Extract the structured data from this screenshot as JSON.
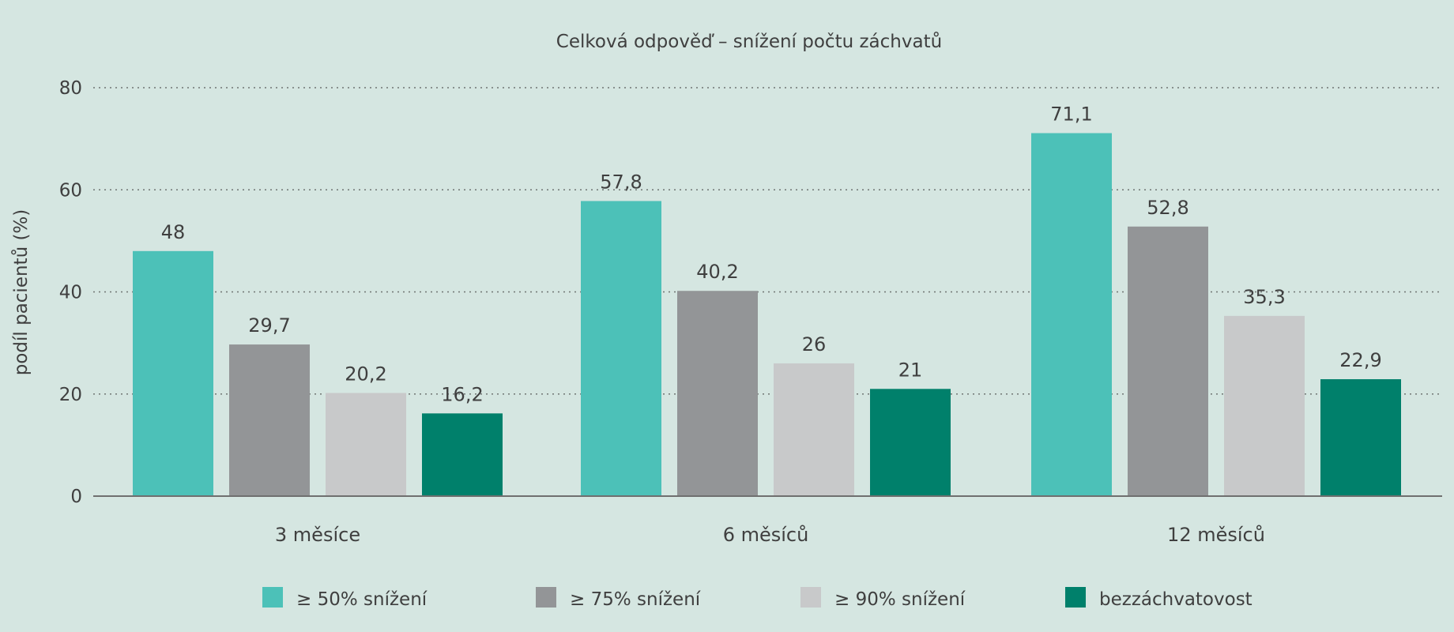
{
  "chart_data": {
    "type": "bar",
    "title": "Celková odpověď – snížení počtu záchvatů",
    "xlabel": "",
    "ylabel": "podíl pacientů (%)",
    "ylim": [
      0,
      80
    ],
    "yticks": [
      0,
      20,
      40,
      60,
      80
    ],
    "grid": true,
    "legend_position": "bottom",
    "categories": [
      "3 měsíce",
      "6 měsíců",
      "12 měsíců"
    ],
    "series": [
      {
        "name": "≥ 50% snížení",
        "color": "#4cc1b8",
        "values": [
          48,
          57.8,
          71.1
        ],
        "labels": [
          "48",
          "57,8",
          "71,1"
        ]
      },
      {
        "name": "≥ 75% snížení",
        "color": "#939597",
        "values": [
          29.7,
          40.2,
          52.8
        ],
        "labels": [
          "29,7",
          "40,2",
          "52,8"
        ]
      },
      {
        "name": "≥ 90% snížení",
        "color": "#c8c9ca",
        "values": [
          20.2,
          26,
          35.3
        ],
        "labels": [
          "20,2",
          "26",
          "35,3"
        ]
      },
      {
        "name": "bezzáchvatovost",
        "color": "#00806b",
        "values": [
          16.2,
          21,
          22.9
        ],
        "labels": [
          "16,2",
          "21",
          "22,9"
        ]
      }
    ]
  }
}
